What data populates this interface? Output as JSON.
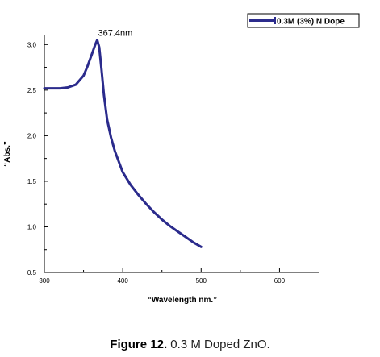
{
  "chart_data": {
    "type": "line",
    "xlabel": "“Wavelength nm.”",
    "ylabel": "“Abs.”",
    "xlim": [
      300,
      650
    ],
    "ylim": [
      0.5,
      3.1
    ],
    "x_ticks": [
      "300",
      "400",
      "500",
      "600"
    ],
    "y_ticks": [
      "0.5",
      "1.0",
      "1.5",
      "2.0",
      "2.5",
      "3.0"
    ],
    "grid": false,
    "legend_position": "top-right",
    "annotation": {
      "text": "367.4nm",
      "x": 367.4,
      "y": 3.05
    },
    "series": [
      {
        "name": "0.3M (3%) N Dope",
        "color": "#2b2b8c",
        "x": [
          300,
          310,
          320,
          330,
          340,
          350,
          355,
          360,
          365,
          367.4,
          370,
          373,
          376,
          380,
          385,
          390,
          400,
          410,
          420,
          430,
          440,
          450,
          460,
          470,
          480,
          490,
          500
        ],
        "y": [
          2.52,
          2.52,
          2.52,
          2.53,
          2.56,
          2.66,
          2.76,
          2.88,
          3.0,
          3.05,
          2.97,
          2.72,
          2.45,
          2.18,
          1.98,
          1.83,
          1.6,
          1.46,
          1.35,
          1.25,
          1.16,
          1.08,
          1.01,
          0.95,
          0.89,
          0.83,
          0.78
        ]
      }
    ]
  },
  "caption": {
    "label": "Figure 12.",
    "text": " 0.3 M Doped ZnO."
  }
}
